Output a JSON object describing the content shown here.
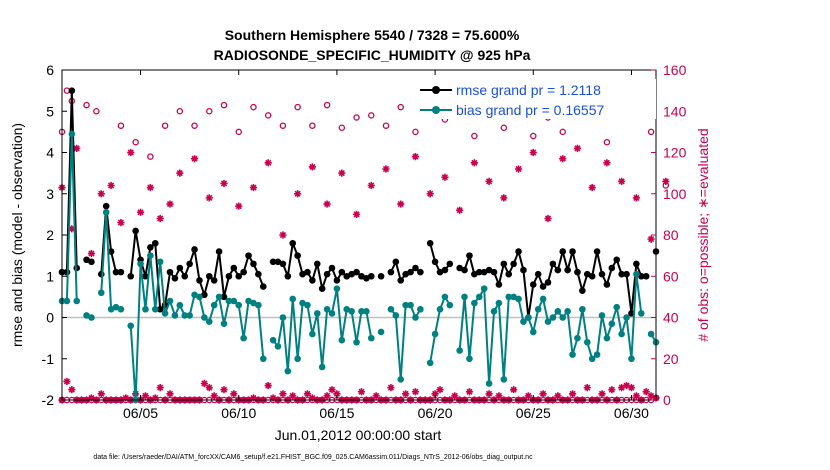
{
  "chart_data": {
    "type": "line",
    "title_line1": "Southern Hemisphere 5540 / 7328 = 75.600%",
    "title_line2": "RADIOSONDE_SPECIFIC_HUMIDITY @ 925 hPa",
    "ylabel_left": "rmse and bias (model - observation)",
    "ylabel_right": "# of obs: o=possible; ∗=evaluated",
    "xlabel": "Jun.01,2012 00:00:00 start",
    "footer": "data file: /Users/raeder/DAI/ATM_forcXX/CAM6_setup/f.e21.FHIST_BGC.f09_025.CAM6assim.011/Diags_NTrS_2012-06/obs_diag_output.nc",
    "ylim_left": [
      -2,
      6
    ],
    "ylim_right": [
      0,
      160
    ],
    "xlim_days": [
      1,
      31.25
    ],
    "yticks_left": [
      "-2",
      "-1",
      "0",
      "1",
      "2",
      "3",
      "4",
      "5",
      "6"
    ],
    "yticks_right": [
      "0",
      "20",
      "40",
      "60",
      "80",
      "100",
      "120",
      "140",
      "160"
    ],
    "xticks": [
      {
        "day": 5,
        "label": "06/05"
      },
      {
        "day": 10,
        "label": "06/10"
      },
      {
        "day": 15,
        "label": "06/15"
      },
      {
        "day": 20,
        "label": "06/20"
      },
      {
        "day": 25,
        "label": "06/25"
      },
      {
        "day": 30,
        "label": "06/30"
      }
    ],
    "colors": {
      "rmse": "#000000",
      "bias": "#008080",
      "counts": "#c8004e",
      "zero_line": "#c0c0c0",
      "legend_text": "#1a4fd6"
    },
    "series": [
      {
        "name": "rmse grand pr = 1.2118",
        "key": "rmse",
        "values": [
          1.1,
          1.1,
          5.5,
          1.2,
          null,
          1.4,
          1.35,
          null,
          1.05,
          2.7,
          1.6,
          1.1,
          1.1,
          null,
          1.0,
          2.1,
          1.4,
          1.0,
          1.7,
          1.8,
          0.2,
          0.3,
          1.1,
          0.95,
          1.2,
          1.0,
          1.3,
          1.65,
          0.9,
          0.55,
          1.0,
          0.9,
          1.6,
          0.5,
          1.0,
          1.2,
          1.0,
          1.1,
          1.5,
          1.3,
          1.05,
          0.75,
          null,
          1.35,
          1.35,
          1.3,
          1.0,
          1.8,
          1.5,
          1.05,
          1.1,
          0.9,
          1.3,
          0.7,
          1.05,
          1.2,
          0.9,
          1.1,
          1.0,
          1.05,
          1.1,
          1.0,
          0.95,
          1.0,
          null,
          1.0,
          null,
          1.1,
          1.35,
          0.9,
          1.05,
          1.1,
          1.2,
          1.1,
          null,
          1.8,
          1.35,
          1.1,
          1.15,
          1.3,
          null,
          1.2,
          1.15,
          1.5,
          1.05,
          1.1,
          1.1,
          1.15,
          1.1,
          0.8,
          1.3,
          1.05,
          1.3,
          1.6,
          1.15,
          0.0,
          0.8,
          1.05,
          0.75,
          0.85,
          1.3,
          1.15,
          1.6,
          1.15,
          1.6,
          1.1,
          0.65,
          1.05,
          1.0,
          1.6,
          1.05,
          0.8,
          1.2,
          1.4,
          1.05,
          1.05,
          0.1,
          1.3,
          1.0,
          1.0,
          null,
          1.6
        ]
      },
      {
        "name": "bias grand pr = 0.16557",
        "key": "bias",
        "values": [
          0.4,
          0.4,
          4.45,
          0.4,
          null,
          0.05,
          0.0,
          null,
          0.6,
          2.55,
          0.2,
          0.25,
          0.2,
          null,
          -0.2,
          -2.0,
          1.3,
          0.2,
          1.5,
          0.2,
          1.35,
          0.1,
          0.4,
          0.05,
          0.3,
          0.05,
          0.05,
          0.55,
          0.5,
          0.0,
          -0.1,
          0.3,
          0.5,
          -0.15,
          0.4,
          0.4,
          0.3,
          -0.5,
          0.4,
          0.35,
          0.3,
          -1.0,
          null,
          -0.55,
          -0.7,
          0.0,
          -1.3,
          0.45,
          -1.0,
          0.35,
          0.3,
          -0.4,
          0.1,
          -1.2,
          0.2,
          0.1,
          0.7,
          -0.55,
          0.2,
          0.15,
          -0.6,
          0.15,
          0.15,
          -0.5,
          null,
          -0.35,
          null,
          0.2,
          0.05,
          -1.5,
          0.3,
          0.3,
          0.0,
          0.2,
          null,
          -1.1,
          -0.4,
          0.2,
          0.5,
          0.3,
          null,
          -0.8,
          0.5,
          -1.0,
          0.35,
          0.5,
          0.7,
          -1.6,
          0.15,
          0.35,
          -1.5,
          0.5,
          0.5,
          0.45,
          -0.1,
          0.0,
          -0.35,
          0.2,
          0.45,
          -0.1,
          0.0,
          0.15,
          0.0,
          0.15,
          -0.9,
          -0.5,
          0.2,
          -0.6,
          -1.0,
          -0.9,
          0.05,
          -0.5,
          -0.15,
          0.25,
          -0.4,
          0.0,
          -1.0,
          1.05,
          0.1,
          null,
          -0.4,
          -0.6
        ]
      }
    ],
    "counts": {
      "possible_label": "o=possible",
      "evaluated_label": "*=evaluated",
      "possible_high": [
        130,
        150,
        145,
        null,
        null,
        143,
        null,
        140,
        null,
        null,
        null,
        null,
        133,
        null,
        null,
        125,
        null,
        null,
        118,
        null,
        null,
        133,
        null,
        null,
        140,
        null,
        null,
        133,
        null,
        null,
        140,
        null,
        null,
        143,
        null,
        null,
        130,
        null,
        null,
        142,
        null,
        null,
        138,
        null,
        null,
        133,
        null,
        null,
        142,
        null,
        null,
        133,
        null,
        null,
        143,
        null,
        null,
        132,
        null,
        null,
        137,
        null,
        null,
        138,
        null,
        null,
        133,
        null,
        null,
        142,
        null,
        null,
        130,
        null,
        null,
        139,
        null,
        null,
        136,
        null,
        null,
        140,
        null,
        null,
        128,
        null,
        null,
        140,
        null,
        null,
        132,
        null,
        null,
        143,
        null,
        null,
        128,
        null,
        null,
        137,
        null,
        null,
        130,
        null,
        null,
        138,
        null,
        null,
        140,
        null,
        null,
        125,
        null,
        null,
        143,
        null,
        null,
        138,
        null,
        null,
        130,
        null,
        null,
        104
      ],
      "possible_low": [
        0,
        0,
        0,
        0,
        0,
        0,
        0,
        0,
        0,
        0,
        0,
        0,
        0,
        0,
        0,
        0,
        0,
        0,
        0,
        0,
        0,
        0,
        0,
        0,
        0,
        0,
        0,
        0,
        0,
        0,
        0,
        0,
        0,
        0,
        0,
        0,
        0,
        0,
        0,
        0,
        0,
        0,
        0,
        0,
        0,
        0,
        0,
        0,
        0,
        0,
        0,
        0,
        0,
        0,
        0,
        0,
        0,
        0,
        0,
        0,
        0,
        0,
        0,
        0,
        0,
        0,
        0,
        0,
        0,
        0,
        0,
        0,
        0,
        0,
        0,
        0,
        0,
        0,
        0,
        0,
        0,
        0,
        0,
        0,
        0,
        0,
        0,
        0,
        0,
        0,
        0,
        0,
        0,
        0,
        0,
        0,
        0,
        0,
        0,
        0,
        0,
        0,
        0,
        0,
        0,
        0,
        0,
        0,
        0,
        0,
        0,
        0,
        0,
        0,
        0,
        0,
        0,
        0,
        0,
        0,
        0,
        1
      ],
      "evaluated_high": [
        103,
        null,
        83,
        122,
        null,
        null,
        71,
        null,
        100,
        null,
        104,
        null,
        86,
        null,
        120,
        null,
        91,
        null,
        103,
        null,
        88,
        null,
        95,
        null,
        110,
        null,
        null,
        117,
        null,
        null,
        98,
        null,
        null,
        105,
        null,
        null,
        94,
        null,
        null,
        103,
        null,
        null,
        115,
        null,
        null,
        80,
        null,
        null,
        100,
        null,
        null,
        113,
        null,
        null,
        95,
        null,
        null,
        110,
        null,
        null,
        90,
        null,
        null,
        104,
        null,
        null,
        112,
        null,
        null,
        95,
        null,
        null,
        118,
        null,
        null,
        100,
        null,
        null,
        108,
        null,
        null,
        92,
        null,
        null,
        115,
        null,
        null,
        106,
        null,
        null,
        98,
        null,
        null,
        112,
        null,
        null,
        120,
        null,
        null,
        88,
        null,
        null,
        117,
        null,
        null,
        122,
        null,
        null,
        103,
        null,
        null,
        115,
        null,
        null,
        106,
        null,
        null,
        98,
        null,
        null,
        78,
        null,
        null,
        106
      ],
      "evaluated_low": [
        0,
        9,
        5,
        0,
        0,
        0,
        1,
        0,
        3,
        0,
        0,
        0,
        0,
        1,
        0,
        3,
        0,
        2,
        0,
        1,
        6,
        0,
        3,
        0,
        0,
        0,
        0,
        0,
        0,
        8,
        6,
        2,
        0,
        5,
        0,
        3,
        0,
        0,
        0,
        1,
        0,
        0,
        7,
        1,
        0,
        3,
        0,
        2,
        0,
        0,
        3,
        1,
        0,
        0,
        2,
        5,
        3,
        0,
        0,
        0,
        0,
        4,
        0,
        0,
        2,
        0,
        0,
        6,
        0,
        0,
        3,
        0,
        4,
        0,
        0,
        0,
        3,
        5,
        0,
        0,
        2,
        0,
        0,
        4,
        0,
        0,
        0,
        3,
        0,
        2,
        0,
        0,
        5,
        0,
        0,
        2,
        0,
        0,
        3,
        0,
        0,
        2,
        0,
        0,
        3,
        0,
        0,
        6,
        0,
        0,
        3,
        0,
        5,
        0,
        6,
        7,
        6,
        2,
        0,
        4,
        2,
        1
      ]
    }
  }
}
